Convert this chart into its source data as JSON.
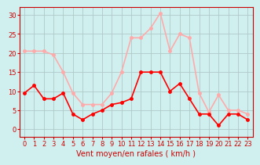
{
  "x": [
    0,
    1,
    2,
    3,
    4,
    5,
    6,
    7,
    8,
    9,
    10,
    11,
    12,
    13,
    14,
    15,
    16,
    17,
    18,
    19,
    20,
    21,
    22,
    23
  ],
  "y_mean": [
    9.5,
    11.5,
    8,
    8,
    9.5,
    4,
    2.5,
    4,
    5,
    6.5,
    7,
    8,
    15,
    15,
    15,
    10,
    12,
    8,
    4,
    4,
    1,
    4,
    4,
    2.5
  ],
  "y_gust": [
    20.5,
    20.5,
    20.5,
    19.5,
    15,
    9.5,
    6.5,
    6.5,
    6.5,
    9.5,
    15,
    24,
    24,
    26.5,
    30.5,
    20.5,
    25,
    24,
    9.5,
    4.5,
    9,
    5,
    5,
    4
  ],
  "color_mean": "#ff0000",
  "color_gust": "#ffaaaa",
  "bg_color": "#d0f0f0",
  "grid_color": "#b0c8c8",
  "xlabel": "Vent moyen/en rafales ( km/h )",
  "xlabel_color": "#cc0000",
  "ylabel_color": "#cc0000",
  "yticks": [
    0,
    5,
    10,
    15,
    20,
    25,
    30
  ],
  "xticks": [
    0,
    1,
    2,
    3,
    4,
    5,
    6,
    7,
    8,
    9,
    10,
    11,
    12,
    13,
    14,
    15,
    16,
    17,
    18,
    19,
    20,
    21,
    22,
    23
  ],
  "ylim": [
    -2,
    32
  ],
  "xlim": [
    -0.5,
    23.5
  ]
}
